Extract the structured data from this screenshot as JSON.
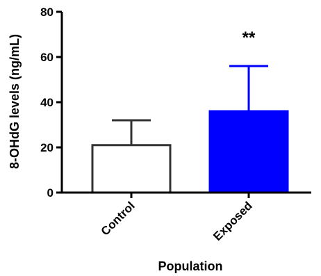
{
  "chart_data": {
    "type": "bar",
    "title": "",
    "xlabel": "Population",
    "ylabel": "8-OHdG levels (ng/mL)",
    "ylim": [
      0,
      80
    ],
    "yticks": [
      "0",
      "20",
      "40",
      "60",
      "80"
    ],
    "categories": [
      "Control",
      "Exposed"
    ],
    "values": [
      21,
      36
    ],
    "error_upper": [
      32,
      56
    ],
    "bar_fill_colors": [
      "#ffffff",
      "#0000ff"
    ],
    "bar_edge_colors": [
      "#333333",
      "#0000ff"
    ],
    "annotations": [
      {
        "category": "Exposed",
        "text": "**"
      }
    ],
    "grid": false,
    "legend": "none"
  }
}
